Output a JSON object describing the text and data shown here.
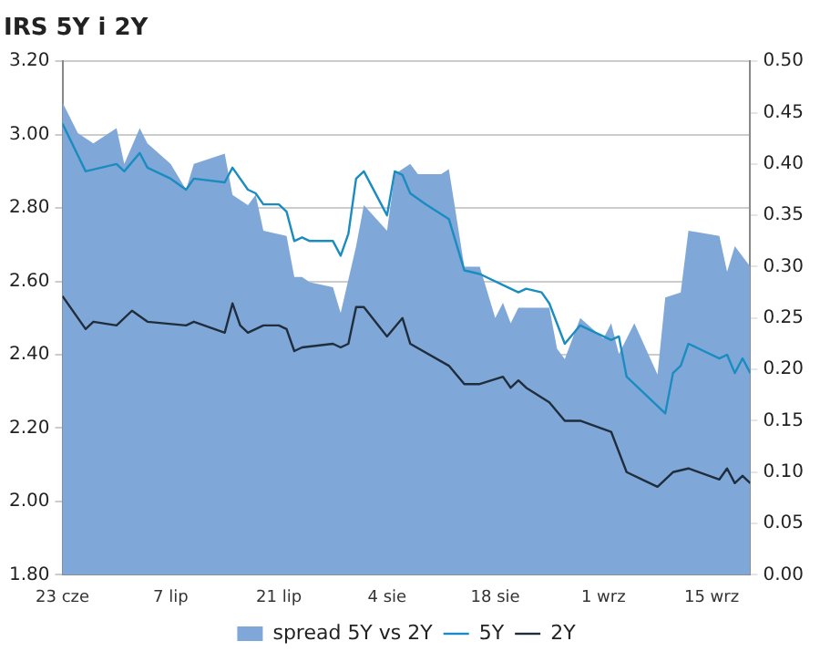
{
  "chart_data": {
    "type": "line",
    "title": "IRS 5Y i 2Y",
    "series": [
      {
        "name": "spread 5Y vs 2Y",
        "type": "area",
        "axis": "y2",
        "color": "#7fa8d8",
        "x": [
          "--06-23",
          "--06-25",
          "--06-27",
          "--06-30",
          "--07-01",
          "--07-03",
          "--07-04",
          "--07-07",
          "--07-09",
          "--07-10",
          "--07-14",
          "--07-15",
          "--07-17",
          "--07-18",
          "--07-19",
          "--07-22",
          "--07-23",
          "--07-24",
          "--07-25",
          "--07-28",
          "--07-29",
          "--07-31",
          "--08-01",
          "--08-04",
          "--08-05",
          "--08-07",
          "--08-08",
          "--08-11",
          "--08-12",
          "--08-14",
          "--08-16",
          "--08-18",
          "--08-19",
          "--08-20",
          "--08-21",
          "--08-25",
          "--08-26",
          "--08-27",
          "--08-29",
          "--09-01",
          "--09-02",
          "--09-03",
          "--09-05",
          "--09-08",
          "--09-09",
          "--09-11",
          "--09-12",
          "--09-16",
          "--09-17",
          "--09-18",
          "--09-20"
        ],
        "values": [
          0.46,
          0.43,
          0.42,
          0.435,
          0.4,
          0.435,
          0.42,
          0.4,
          0.375,
          0.4,
          0.41,
          0.37,
          0.36,
          0.37,
          0.335,
          0.33,
          0.29,
          0.29,
          0.285,
          0.28,
          0.255,
          0.32,
          0.36,
          0.335,
          0.39,
          0.4,
          0.39,
          0.39,
          0.395,
          0.3,
          0.3,
          0.25,
          0.265,
          0.245,
          0.26,
          0.26,
          0.22,
          0.21,
          0.25,
          0.23,
          0.245,
          0.215,
          0.245,
          0.195,
          0.27,
          0.275,
          0.335,
          0.33,
          0.295,
          0.32,
          0.3
        ]
      },
      {
        "name": "5Y",
        "type": "line",
        "color": "#1a8cc0",
        "x": [
          "--06-23",
          "--06-26",
          "--06-28",
          "--06-30",
          "--07-01",
          "--07-03",
          "--07-04",
          "--07-07",
          "--07-09",
          "--07-10",
          "--07-14",
          "--07-15",
          "--07-17",
          "--07-18",
          "--07-19",
          "--07-21",
          "--07-22",
          "--07-23",
          "--07-24",
          "--07-25",
          "--07-28",
          "--07-29",
          "--07-30",
          "--07-31",
          "--08-01",
          "--08-04",
          "--08-05",
          "--08-06",
          "--08-07",
          "--08-09",
          "--08-12",
          "--08-14",
          "--08-16",
          "--08-20",
          "--08-21",
          "--08-22",
          "--08-24",
          "--08-25",
          "--08-27",
          "--08-29",
          "--09-02",
          "--09-03",
          "--09-04",
          "--09-05",
          "--09-09",
          "--09-10",
          "--09-11",
          "--09-12",
          "--09-16",
          "--09-17",
          "--09-18",
          "--09-19",
          "--09-20"
        ],
        "values": [
          3.03,
          2.9,
          2.91,
          2.92,
          2.9,
          2.95,
          2.91,
          2.88,
          2.85,
          2.88,
          2.87,
          2.91,
          2.85,
          2.84,
          2.81,
          2.81,
          2.79,
          2.71,
          2.72,
          2.71,
          2.71,
          2.67,
          2.73,
          2.88,
          2.9,
          2.78,
          2.9,
          2.89,
          2.84,
          2.81,
          2.77,
          2.63,
          2.62,
          2.58,
          2.57,
          2.58,
          2.57,
          2.54,
          2.43,
          2.48,
          2.44,
          2.45,
          2.34,
          2.32,
          2.24,
          2.35,
          2.37,
          2.43,
          2.39,
          2.4,
          2.35,
          2.39,
          2.35
        ]
      },
      {
        "name": "2Y",
        "type": "line",
        "color": "#1f2d3d",
        "x": [
          "--06-23",
          "--06-26",
          "--06-27",
          "--06-30",
          "--07-02",
          "--07-04",
          "--07-09",
          "--07-10",
          "--07-14",
          "--07-15",
          "--07-16",
          "--07-17",
          "--07-19",
          "--07-21",
          "--07-22",
          "--07-23",
          "--07-24",
          "--07-28",
          "--07-29",
          "--07-30",
          "--07-31",
          "--08-01",
          "--08-04",
          "--08-06",
          "--08-07",
          "--08-12",
          "--08-14",
          "--08-16",
          "--08-19",
          "--08-20",
          "--08-21",
          "--08-22",
          "--08-25",
          "--08-27",
          "--08-29",
          "--09-02",
          "--09-04",
          "--09-06",
          "--09-08",
          "--09-10",
          "--09-12",
          "--09-16",
          "--09-17",
          "--09-18",
          "--09-19",
          "--09-20"
        ],
        "values": [
          2.56,
          2.47,
          2.49,
          2.48,
          2.52,
          2.49,
          2.48,
          2.49,
          2.46,
          2.54,
          2.48,
          2.46,
          2.48,
          2.48,
          2.47,
          2.41,
          2.42,
          2.43,
          2.42,
          2.43,
          2.53,
          2.53,
          2.45,
          2.5,
          2.43,
          2.37,
          2.32,
          2.32,
          2.34,
          2.31,
          2.33,
          2.31,
          2.27,
          2.22,
          2.22,
          2.19,
          2.08,
          2.06,
          2.04,
          2.08,
          2.09,
          2.06,
          2.09,
          2.05,
          2.07,
          2.05
        ]
      }
    ],
    "xlim": [
      "--06-23",
      "--09-20"
    ],
    "xticks": [
      {
        "value": "--06-23",
        "label": "23 cze"
      },
      {
        "value": "--07-07",
        "label": "7 lip"
      },
      {
        "value": "--07-21",
        "label": "21 lip"
      },
      {
        "value": "--08-04",
        "label": "4 sie"
      },
      {
        "value": "--08-18",
        "label": "18 sie"
      },
      {
        "value": "--09-01",
        "label": "1 wrz"
      },
      {
        "value": "--09-15",
        "label": "15 wrz"
      }
    ],
    "ylim": [
      1.8,
      3.2
    ],
    "yticks": [
      {
        "value": 1.8,
        "label": "1.80"
      },
      {
        "value": 2.0,
        "label": "2.00"
      },
      {
        "value": 2.2,
        "label": "2.20"
      },
      {
        "value": 2.4,
        "label": "2.40"
      },
      {
        "value": 2.6,
        "label": "2.60"
      },
      {
        "value": 2.8,
        "label": "2.80"
      },
      {
        "value": 3.0,
        "label": "3.00"
      },
      {
        "value": 3.2,
        "label": "3.20"
      }
    ],
    "y2lim": [
      0,
      0.5
    ],
    "y2ticks": [
      {
        "value": 0,
        "label": "0.00"
      },
      {
        "value": 0.05,
        "label": "0.05"
      },
      {
        "value": 0.1,
        "label": "0.10"
      },
      {
        "value": 0.15,
        "label": "0.15"
      },
      {
        "value": 0.2,
        "label": "0.20"
      },
      {
        "value": 0.25,
        "label": "0.25"
      },
      {
        "value": 0.3,
        "label": "0.30"
      },
      {
        "value": 0.35,
        "label": "0.35"
      },
      {
        "value": 0.4,
        "label": "0.40"
      },
      {
        "value": 0.45,
        "label": "0.45"
      },
      {
        "value": 0.5,
        "label": "0.50"
      }
    ],
    "grid": "y",
    "legend": "bottom",
    "marker": "none",
    "line_style": "solid"
  }
}
